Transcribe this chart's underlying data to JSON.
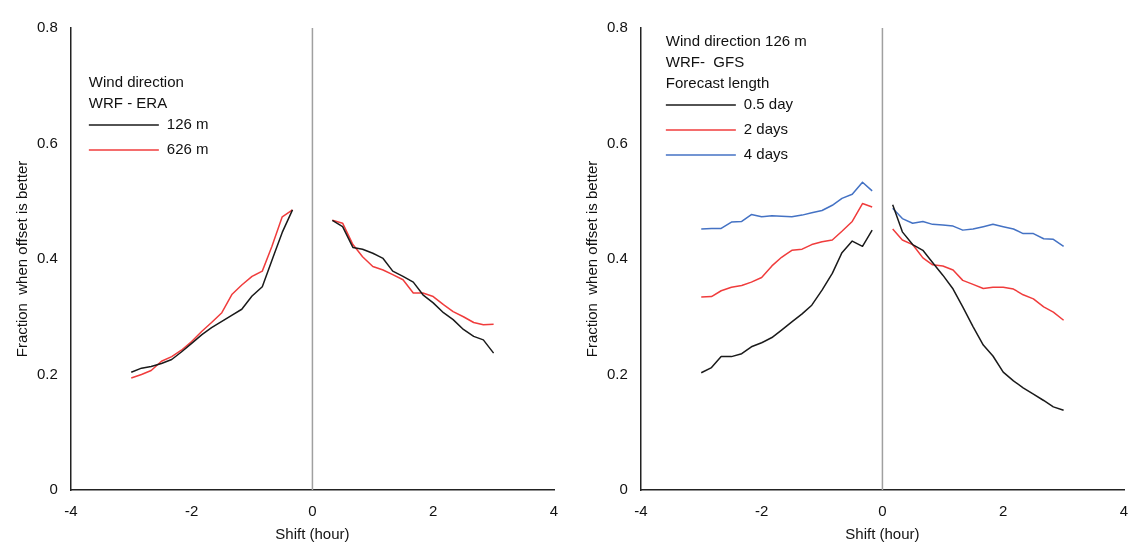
{
  "chart_data": [
    {
      "type": "line",
      "xlabel": "Shift (hour)",
      "ylabel": "Fraction  when offset is better",
      "legend_title": "Wind direction\nWRF - ERA",
      "legend": "top left",
      "marker": "none",
      "line_style": "solid",
      "xlim": [
        -4,
        4
      ],
      "xticks": [
        -4,
        -2,
        0,
        2,
        4
      ],
      "ylim": [
        0,
        0.8
      ],
      "yticks": [
        0,
        0.2,
        0.4,
        0.6,
        0.8
      ],
      "x": [
        -3,
        -2.83,
        -2.67,
        -2.5,
        -2.33,
        -2.17,
        -2,
        -1.83,
        -1.67,
        -1.5,
        -1.33,
        -1.17,
        -1,
        -0.83,
        -0.67,
        -0.5,
        -0.33,
        0,
        0.33,
        0.5,
        0.67,
        0.83,
        1,
        1.17,
        1.33,
        1.5,
        1.67,
        1.83,
        2,
        2.17,
        2.33,
        2.5,
        2.67,
        2.83,
        3
      ],
      "ref_lines": [
        {
          "axis": "x",
          "value": 0,
          "color": "#a0a0a0"
        }
      ],
      "series": [
        {
          "name": "126 m",
          "color": "#1a1a1a",
          "values": [
            0.204,
            0.211,
            0.214,
            0.219,
            0.226,
            0.239,
            0.254,
            0.269,
            0.281,
            0.292,
            0.303,
            0.313,
            0.336,
            0.352,
            0.398,
            0.446,
            0.485,
            null,
            0.467,
            0.456,
            0.42,
            0.417,
            0.41,
            0.401,
            0.379,
            0.37,
            0.36,
            0.338,
            0.324,
            0.307,
            0.295,
            0.278,
            0.266,
            0.26,
            0.237
          ]
        },
        {
          "name": "626 m",
          "color": "#f03c3c",
          "values": [
            0.194,
            0.2,
            0.207,
            0.223,
            0.231,
            0.242,
            0.257,
            0.275,
            0.29,
            0.307,
            0.339,
            0.355,
            0.37,
            0.379,
            0.422,
            0.473,
            0.485,
            null,
            0.467,
            0.462,
            0.425,
            0.404,
            0.387,
            0.381,
            0.373,
            0.364,
            0.341,
            0.341,
            0.335,
            0.321,
            0.309,
            0.3,
            0.29,
            0.286,
            0.287
          ]
        }
      ]
    },
    {
      "type": "line",
      "xlabel": "Shift (hour)",
      "ylabel": "Fraction  when offset is better",
      "legend_title": "Wind direction 126 m\nWRF-  GFS\nForecast length",
      "legend": "top left",
      "marker": "none",
      "line_style": "solid",
      "xlim": [
        -4,
        4
      ],
      "xticks": [
        -4,
        -2,
        0,
        2,
        4
      ],
      "ylim": [
        0,
        0.8
      ],
      "yticks": [
        0,
        0.2,
        0.4,
        0.6,
        0.8
      ],
      "x": [
        -3,
        -2.83,
        -2.67,
        -2.5,
        -2.33,
        -2.17,
        -2,
        -1.83,
        -1.67,
        -1.5,
        -1.33,
        -1.17,
        -1,
        -0.83,
        -0.67,
        -0.5,
        -0.33,
        -0.17,
        0,
        0.17,
        0.33,
        0.5,
        0.67,
        0.83,
        1,
        1.17,
        1.33,
        1.5,
        1.67,
        1.83,
        2,
        2.17,
        2.33,
        2.5,
        2.67,
        2.83,
        3
      ],
      "ref_lines": [
        {
          "axis": "x",
          "value": 0,
          "color": "#a0a0a0"
        }
      ],
      "series": [
        {
          "name": "0.5 day",
          "color": "#1a1a1a",
          "values": [
            0.203,
            0.212,
            0.231,
            0.231,
            0.236,
            0.248,
            0.255,
            0.264,
            0.277,
            0.291,
            0.305,
            0.32,
            0.346,
            0.375,
            0.411,
            0.431,
            0.422,
            0.45,
            null,
            0.494,
            0.447,
            0.425,
            0.415,
            0.394,
            0.372,
            0.348,
            0.317,
            0.283,
            0.251,
            0.232,
            0.204,
            0.189,
            0.177,
            0.166,
            0.155,
            0.144,
            0.138
          ]
        },
        {
          "name": "2 days",
          "color": "#f03c3c",
          "values": [
            0.334,
            0.335,
            0.345,
            0.351,
            0.354,
            0.36,
            0.368,
            0.388,
            0.403,
            0.415,
            0.417,
            0.425,
            0.43,
            0.433,
            0.448,
            0.465,
            0.496,
            0.49,
            null,
            0.452,
            0.433,
            0.425,
            0.402,
            0.39,
            0.388,
            0.381,
            0.363,
            0.356,
            0.349,
            0.351,
            0.351,
            0.348,
            0.338,
            0.331,
            0.317,
            0.308,
            0.294
          ]
        },
        {
          "name": "4 days",
          "color": "#4472c4",
          "values": [
            0.452,
            0.453,
            0.453,
            0.464,
            0.465,
            0.477,
            0.473,
            0.475,
            0.474,
            0.473,
            0.476,
            0.48,
            0.484,
            0.493,
            0.505,
            0.512,
            0.533,
            0.518,
            null,
            0.488,
            0.47,
            0.462,
            0.465,
            0.46,
            0.459,
            0.457,
            0.45,
            0.452,
            0.456,
            0.46,
            0.456,
            0.452,
            0.444,
            0.444,
            0.435,
            0.434,
            0.422
          ]
        }
      ]
    }
  ]
}
